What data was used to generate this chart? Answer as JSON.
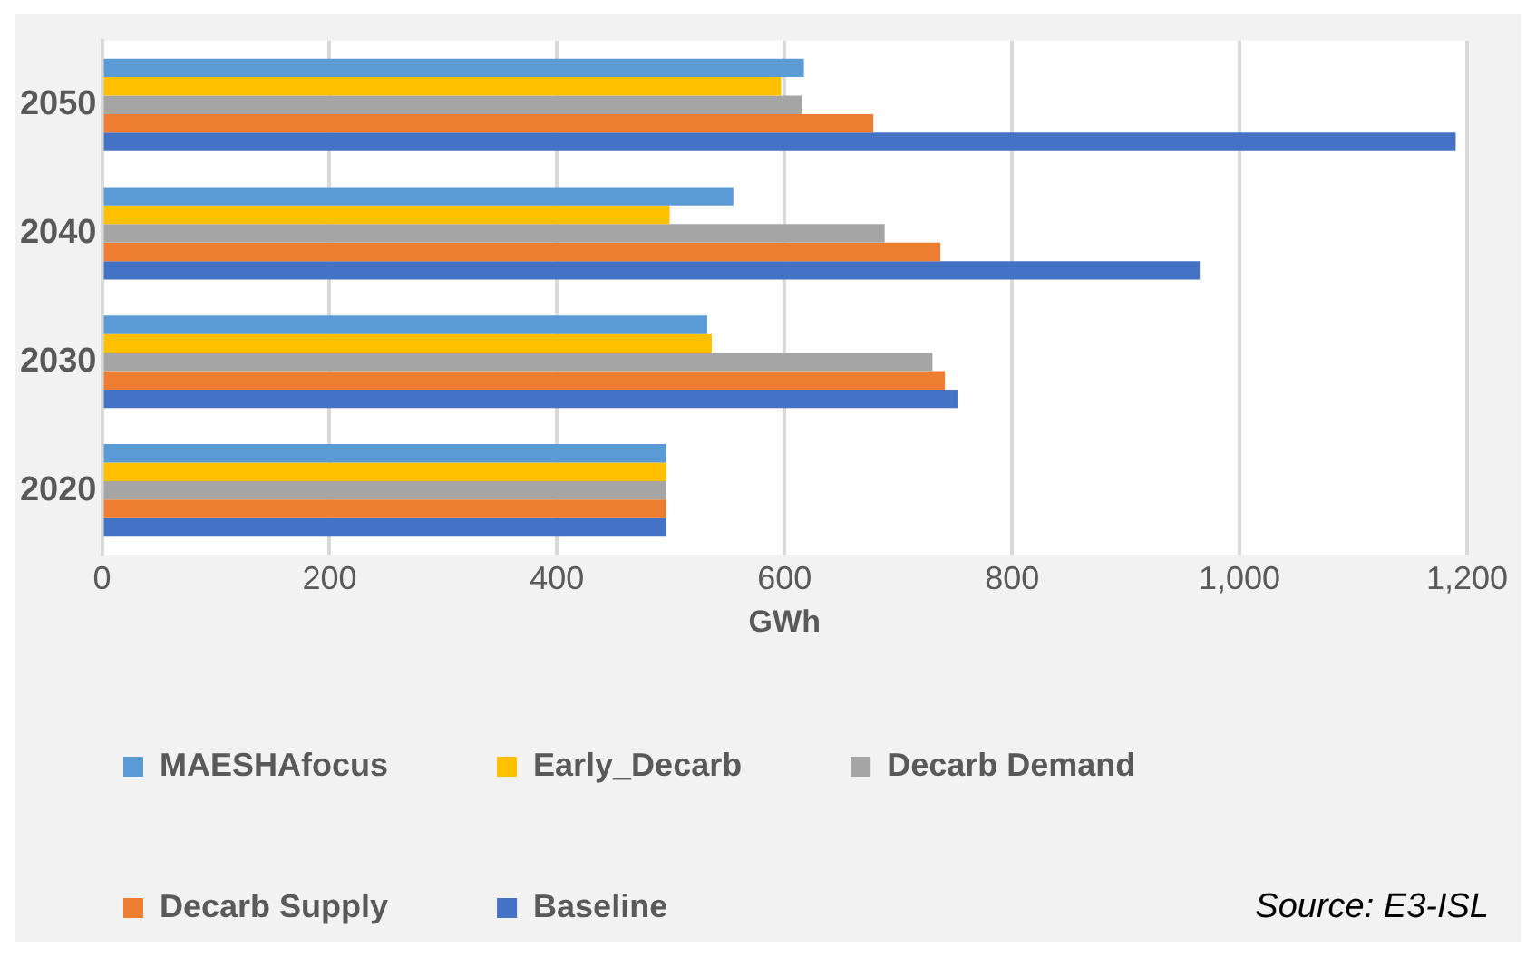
{
  "chart_data": {
    "type": "bar",
    "orientation": "horizontal",
    "categories": [
      "2050",
      "2040",
      "2030",
      "2020"
    ],
    "series": [
      {
        "name": "MAESHAfocus",
        "color": "#5b9bd5",
        "values": [
          617,
          555,
          532,
          496
        ]
      },
      {
        "name": "Early_Decarb",
        "color": "#ffc000",
        "values": [
          597,
          499,
          536,
          496
        ]
      },
      {
        "name": "Decarb Demand",
        "color": "#a5a5a5",
        "values": [
          615,
          688,
          730,
          496
        ]
      },
      {
        "name": "Decarb Supply",
        "color": "#ed7d31",
        "values": [
          678,
          737,
          741,
          496
        ]
      },
      {
        "name": "Baseline",
        "color": "#4472c4",
        "values": [
          1190,
          965,
          752,
          496
        ]
      }
    ],
    "xlabel": "GWh",
    "xlim": [
      0,
      1200
    ],
    "xticks": [
      0,
      200,
      400,
      600,
      800,
      {
        "value": 1000,
        "label": "1,000"
      },
      {
        "value": 1200,
        "label": "1,200"
      }
    ],
    "grid": "x",
    "legend": "bottom",
    "annotations": [
      "Source: E3-ISL"
    ]
  }
}
